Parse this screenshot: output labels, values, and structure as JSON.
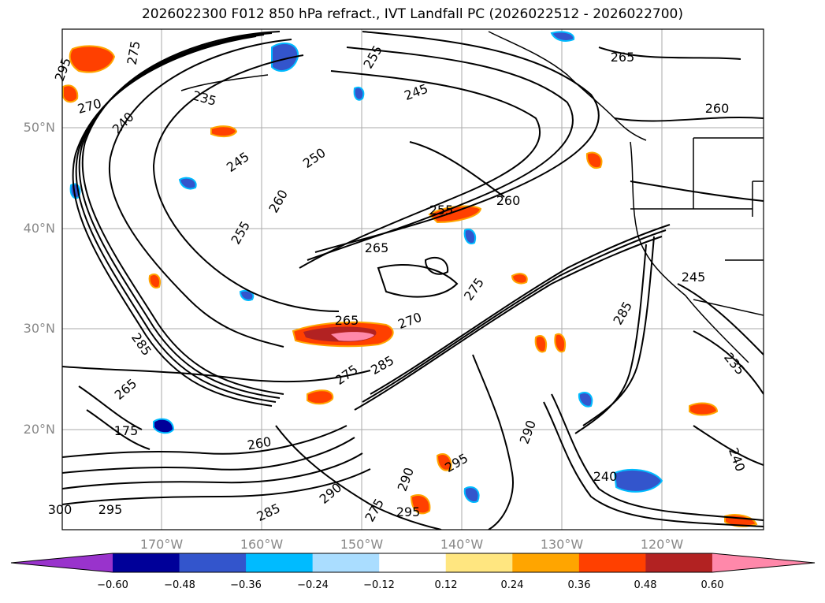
{
  "title": "2026022300 F012 850 hPa refract., IVT Landfall PC (2026022512 - 2026022700)",
  "lat_labels": [
    "50°N",
    "40°N",
    "30°N",
    "20°N"
  ],
  "lon_labels": [
    "170°W",
    "160°W",
    "150°W",
    "140°W",
    "130°W",
    "120°W"
  ],
  "colorbar": {
    "colors": [
      "#9933cc",
      "#000099",
      "#3355cc",
      "#00bbff",
      "#aaddff",
      "#ffffff",
      "#ffe680",
      "#ffa500",
      "#ff4000",
      "#b22222",
      "#ff88aa"
    ],
    "tick_labels": [
      "−0.60",
      "−0.48",
      "−0.36",
      "−0.24",
      "−0.12",
      "0.12",
      "0.24",
      "0.36",
      "0.48",
      "0.60"
    ]
  },
  "contour_labels": [
    "275",
    "270",
    "295",
    "235",
    "255",
    "245",
    "265",
    "260",
    "240",
    "245",
    "250",
    "260",
    "255",
    "260",
    "265",
    "255",
    "245",
    "285",
    "265",
    "270",
    "275",
    "275",
    "285",
    "290",
    "295",
    "290",
    "275",
    "295",
    "240",
    "235",
    "300",
    "295",
    "285",
    "290",
    "285",
    "260",
    "265",
    "175",
    "240"
  ]
}
